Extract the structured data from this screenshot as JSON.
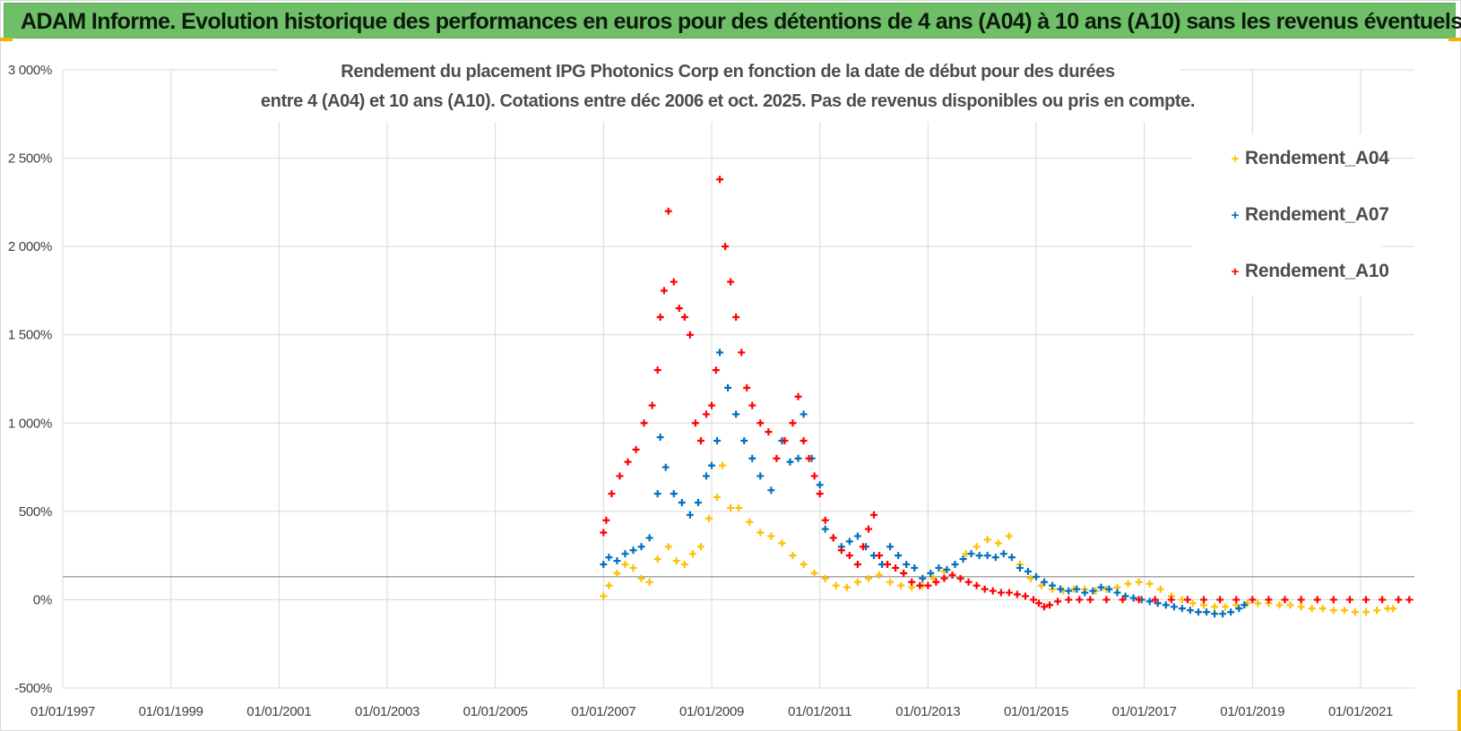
{
  "header": {
    "title": "ADAM Informe. Evolution historique des performances en euros pour des détentions de 4 ans (A04) à 10 ans (A10) sans les revenus éventuels"
  },
  "chart_data": {
    "type": "scatter",
    "title_lines": [
      "Rendement du placement IPG Photonics Corp en fonction de la date de début pour des durées",
      "entre 4 (A04) et 10 ans (A10).  Cotations entre déc 2006 et oct. 2025. Pas de revenus disponibles ou pris en compte."
    ],
    "xlabel": "",
    "ylabel": "",
    "xlim": [
      1997.0,
      2022.0
    ],
    "ylim": [
      -500,
      3000
    ],
    "x_tick_values": [
      1997,
      1999,
      2001,
      2003,
      2005,
      2007,
      2009,
      2011,
      2013,
      2015,
      2017,
      2019,
      2021
    ],
    "x_tick_labels": [
      "01/01/1997",
      "01/01/1999",
      "01/01/2001",
      "01/01/2003",
      "01/01/2005",
      "01/01/2007",
      "01/01/2009",
      "01/01/2011",
      "01/01/2013",
      "01/01/2015",
      "01/01/2017",
      "01/01/2019",
      "01/01/2021"
    ],
    "y_tick_values": [
      3000,
      2500,
      2000,
      1500,
      1000,
      500,
      0,
      -500
    ],
    "y_tick_labels": [
      "3 000%",
      "2 500%",
      "2 000%",
      "1 500%",
      "1 000%",
      "500%",
      "0%",
      "-500%"
    ],
    "reference_line_y": 130,
    "grid": true,
    "legend_position": "right",
    "marker": "+",
    "series": [
      {
        "name": "Rendement_A04",
        "color": "#ffc000",
        "points": [
          [
            2007.0,
            20
          ],
          [
            2007.1,
            80
          ],
          [
            2007.25,
            150
          ],
          [
            2007.4,
            200
          ],
          [
            2007.55,
            180
          ],
          [
            2007.7,
            120
          ],
          [
            2007.85,
            100
          ],
          [
            2008.0,
            230
          ],
          [
            2008.2,
            300
          ],
          [
            2008.35,
            220
          ],
          [
            2008.5,
            200
          ],
          [
            2008.65,
            260
          ],
          [
            2008.8,
            300
          ],
          [
            2008.95,
            460
          ],
          [
            2009.1,
            580
          ],
          [
            2009.2,
            760
          ],
          [
            2009.35,
            520
          ],
          [
            2009.5,
            520
          ],
          [
            2009.7,
            440
          ],
          [
            2009.9,
            380
          ],
          [
            2010.1,
            360
          ],
          [
            2010.3,
            320
          ],
          [
            2010.5,
            250
          ],
          [
            2010.7,
            200
          ],
          [
            2010.9,
            150
          ],
          [
            2011.1,
            120
          ],
          [
            2011.3,
            80
          ],
          [
            2011.5,
            70
          ],
          [
            2011.7,
            100
          ],
          [
            2011.9,
            120
          ],
          [
            2012.1,
            140
          ],
          [
            2012.3,
            100
          ],
          [
            2012.5,
            80
          ],
          [
            2012.7,
            70
          ],
          [
            2012.9,
            80
          ],
          [
            2013.1,
            120
          ],
          [
            2013.3,
            160
          ],
          [
            2013.5,
            200
          ],
          [
            2013.7,
            260
          ],
          [
            2013.9,
            300
          ],
          [
            2014.1,
            340
          ],
          [
            2014.3,
            320
          ],
          [
            2014.5,
            360
          ],
          [
            2014.7,
            200
          ],
          [
            2014.9,
            120
          ],
          [
            2015.1,
            80
          ],
          [
            2015.3,
            60
          ],
          [
            2015.5,
            50
          ],
          [
            2015.7,
            60
          ],
          [
            2015.9,
            60
          ],
          [
            2016.1,
            50
          ],
          [
            2016.3,
            60
          ],
          [
            2016.5,
            70
          ],
          [
            2016.7,
            90
          ],
          [
            2016.9,
            100
          ],
          [
            2017.1,
            90
          ],
          [
            2017.3,
            60
          ],
          [
            2017.5,
            20
          ],
          [
            2017.7,
            0
          ],
          [
            2017.9,
            -20
          ],
          [
            2018.1,
            -30
          ],
          [
            2018.3,
            -40
          ],
          [
            2018.5,
            -40
          ],
          [
            2018.7,
            -30
          ],
          [
            2018.9,
            -20
          ],
          [
            2019.1,
            -20
          ],
          [
            2019.3,
            -20
          ],
          [
            2019.5,
            -30
          ],
          [
            2019.7,
            -30
          ],
          [
            2019.9,
            -40
          ],
          [
            2020.1,
            -50
          ],
          [
            2020.3,
            -50
          ],
          [
            2020.5,
            -60
          ],
          [
            2020.7,
            -60
          ],
          [
            2020.9,
            -70
          ],
          [
            2021.1,
            -70
          ],
          [
            2021.3,
            -60
          ],
          [
            2021.5,
            -50
          ],
          [
            2021.6,
            -50
          ]
        ]
      },
      {
        "name": "Rendement_A07",
        "color": "#0070c0",
        "points": [
          [
            2007.0,
            200
          ],
          [
            2007.1,
            240
          ],
          [
            2007.25,
            220
          ],
          [
            2007.4,
            260
          ],
          [
            2007.55,
            280
          ],
          [
            2007.7,
            300
          ],
          [
            2007.85,
            350
          ],
          [
            2008.0,
            600
          ],
          [
            2008.05,
            920
          ],
          [
            2008.15,
            750
          ],
          [
            2008.3,
            600
          ],
          [
            2008.45,
            550
          ],
          [
            2008.6,
            480
          ],
          [
            2008.75,
            550
          ],
          [
            2008.9,
            700
          ],
          [
            2009.0,
            760
          ],
          [
            2009.1,
            900
          ],
          [
            2009.15,
            1400
          ],
          [
            2009.3,
            1200
          ],
          [
            2009.45,
            1050
          ],
          [
            2009.6,
            900
          ],
          [
            2009.75,
            800
          ],
          [
            2009.9,
            700
          ],
          [
            2010.1,
            620
          ],
          [
            2010.3,
            900
          ],
          [
            2010.45,
            780
          ],
          [
            2010.6,
            800
          ],
          [
            2010.7,
            1050
          ],
          [
            2010.85,
            800
          ],
          [
            2011.0,
            650
          ],
          [
            2011.1,
            400
          ],
          [
            2011.25,
            350
          ],
          [
            2011.4,
            300
          ],
          [
            2011.55,
            330
          ],
          [
            2011.7,
            360
          ],
          [
            2011.85,
            300
          ],
          [
            2012.0,
            250
          ],
          [
            2012.15,
            200
          ],
          [
            2012.3,
            300
          ],
          [
            2012.45,
            250
          ],
          [
            2012.6,
            200
          ],
          [
            2012.75,
            180
          ],
          [
            2012.9,
            120
          ],
          [
            2013.05,
            150
          ],
          [
            2013.2,
            180
          ],
          [
            2013.35,
            170
          ],
          [
            2013.5,
            200
          ],
          [
            2013.65,
            230
          ],
          [
            2013.8,
            260
          ],
          [
            2013.95,
            250
          ],
          [
            2014.1,
            250
          ],
          [
            2014.25,
            240
          ],
          [
            2014.4,
            260
          ],
          [
            2014.55,
            240
          ],
          [
            2014.7,
            180
          ],
          [
            2014.85,
            160
          ],
          [
            2015.0,
            130
          ],
          [
            2015.15,
            100
          ],
          [
            2015.3,
            80
          ],
          [
            2015.45,
            60
          ],
          [
            2015.6,
            50
          ],
          [
            2015.75,
            60
          ],
          [
            2015.9,
            40
          ],
          [
            2016.05,
            50
          ],
          [
            2016.2,
            70
          ],
          [
            2016.35,
            60
          ],
          [
            2016.5,
            40
          ],
          [
            2016.65,
            20
          ],
          [
            2016.8,
            10
          ],
          [
            2016.95,
            0
          ],
          [
            2017.1,
            -10
          ],
          [
            2017.25,
            -20
          ],
          [
            2017.4,
            -30
          ],
          [
            2017.55,
            -40
          ],
          [
            2017.7,
            -50
          ],
          [
            2017.85,
            -60
          ],
          [
            2018.0,
            -70
          ],
          [
            2018.15,
            -70
          ],
          [
            2018.3,
            -80
          ],
          [
            2018.45,
            -80
          ],
          [
            2018.6,
            -70
          ],
          [
            2018.75,
            -50
          ],
          [
            2018.85,
            -30
          ]
        ]
      },
      {
        "name": "Rendement_A10",
        "color": "#ff0000",
        "points": [
          [
            2007.0,
            380
          ],
          [
            2007.05,
            450
          ],
          [
            2007.15,
            600
          ],
          [
            2007.3,
            700
          ],
          [
            2007.45,
            780
          ],
          [
            2007.6,
            850
          ],
          [
            2007.75,
            1000
          ],
          [
            2007.9,
            1100
          ],
          [
            2008.0,
            1300
          ],
          [
            2008.05,
            1600
          ],
          [
            2008.12,
            1750
          ],
          [
            2008.2,
            2200
          ],
          [
            2008.3,
            1800
          ],
          [
            2008.4,
            1650
          ],
          [
            2008.5,
            1600
          ],
          [
            2008.6,
            1500
          ],
          [
            2008.7,
            1000
          ],
          [
            2008.8,
            900
          ],
          [
            2008.9,
            1050
          ],
          [
            2009.0,
            1100
          ],
          [
            2009.08,
            1300
          ],
          [
            2009.15,
            2380
          ],
          [
            2009.25,
            2000
          ],
          [
            2009.35,
            1800
          ],
          [
            2009.45,
            1600
          ],
          [
            2009.55,
            1400
          ],
          [
            2009.65,
            1200
          ],
          [
            2009.75,
            1100
          ],
          [
            2009.9,
            1000
          ],
          [
            2010.05,
            950
          ],
          [
            2010.2,
            800
          ],
          [
            2010.35,
            900
          ],
          [
            2010.5,
            1000
          ],
          [
            2010.6,
            1150
          ],
          [
            2010.7,
            900
          ],
          [
            2010.8,
            800
          ],
          [
            2010.9,
            700
          ],
          [
            2011.0,
            600
          ],
          [
            2011.1,
            450
          ],
          [
            2011.25,
            350
          ],
          [
            2011.4,
            280
          ],
          [
            2011.55,
            250
          ],
          [
            2011.7,
            200
          ],
          [
            2011.8,
            300
          ],
          [
            2011.9,
            400
          ],
          [
            2012.0,
            480
          ],
          [
            2012.1,
            250
          ],
          [
            2012.25,
            200
          ],
          [
            2012.4,
            180
          ],
          [
            2012.55,
            150
          ],
          [
            2012.7,
            100
          ],
          [
            2012.85,
            80
          ],
          [
            2013.0,
            80
          ],
          [
            2013.15,
            100
          ],
          [
            2013.3,
            120
          ],
          [
            2013.45,
            140
          ],
          [
            2013.6,
            120
          ],
          [
            2013.75,
            100
          ],
          [
            2013.9,
            80
          ],
          [
            2014.05,
            60
          ],
          [
            2014.2,
            50
          ],
          [
            2014.35,
            40
          ],
          [
            2014.5,
            40
          ],
          [
            2014.65,
            30
          ],
          [
            2014.8,
            20
          ],
          [
            2014.95,
            0
          ],
          [
            2015.05,
            -20
          ],
          [
            2015.15,
            -40
          ],
          [
            2015.25,
            -30
          ],
          [
            2015.4,
            -10
          ],
          [
            2015.6,
            0
          ],
          [
            2015.8,
            0
          ],
          [
            2016.0,
            0
          ],
          [
            2016.3,
            0
          ],
          [
            2016.6,
            0
          ],
          [
            2016.9,
            0
          ],
          [
            2017.2,
            0
          ],
          [
            2017.5,
            0
          ],
          [
            2017.8,
            0
          ],
          [
            2018.1,
            0
          ],
          [
            2018.4,
            0
          ],
          [
            2018.7,
            0
          ],
          [
            2019.0,
            0
          ],
          [
            2019.3,
            0
          ],
          [
            2019.6,
            0
          ],
          [
            2019.9,
            0
          ],
          [
            2020.2,
            0
          ],
          [
            2020.5,
            0
          ],
          [
            2020.8,
            0
          ],
          [
            2021.1,
            0
          ],
          [
            2021.4,
            0
          ],
          [
            2021.7,
            0
          ],
          [
            2021.9,
            0
          ]
        ]
      }
    ]
  }
}
